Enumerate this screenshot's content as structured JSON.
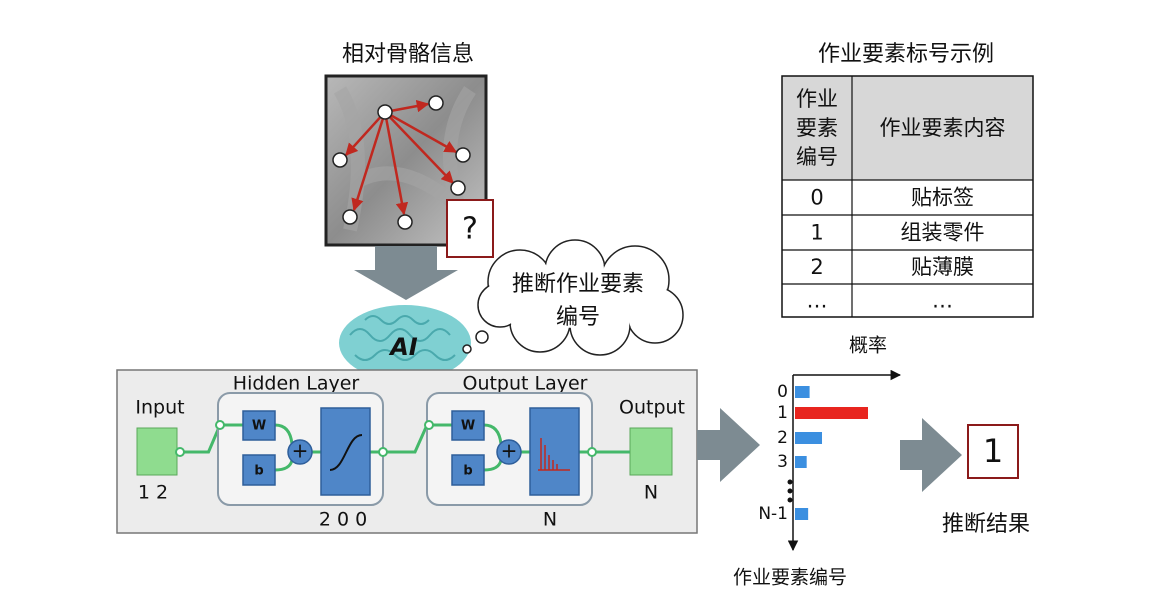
{
  "skeleton": {
    "title": "相对骨骼信息",
    "unknown": "?"
  },
  "thought": {
    "lines": [
      "推断作业要素",
      "编号"
    ]
  },
  "brain": {
    "label": "AI"
  },
  "network": {
    "input": {
      "label": "Input",
      "size": "1 2"
    },
    "hidden": {
      "label": "Hidden Layer",
      "size": "2 0 0"
    },
    "output_layer": {
      "label": "Output Layer",
      "size": "N"
    },
    "output": {
      "label": "Output",
      "size": "N"
    },
    "weight": "W",
    "bias": "b",
    "sum": "+"
  },
  "probability_chart": {
    "type": "bar",
    "x_label": "概率",
    "y_label": "作业要素编号",
    "categories": [
      "0",
      "1",
      "2",
      "3",
      "N-1"
    ],
    "values": [
      0.2,
      1,
      0.37,
      0.16,
      0.18
    ],
    "colors": [
      "#3b8fe0",
      "#e8251f",
      "#3b8fe0",
      "#3b8fe0",
      "#3b8fe0"
    ]
  },
  "result": {
    "value": "1",
    "label": "推断结果"
  },
  "table": {
    "title": "作业要素标号示例",
    "header": [
      [
        "作业",
        "要素",
        "编号"
      ],
      "作业要素内容"
    ],
    "rows": [
      [
        "0",
        "贴标签"
      ],
      [
        "1",
        "组装零件"
      ],
      [
        "2",
        "贴薄膜"
      ],
      [
        "…",
        "…"
      ]
    ]
  }
}
